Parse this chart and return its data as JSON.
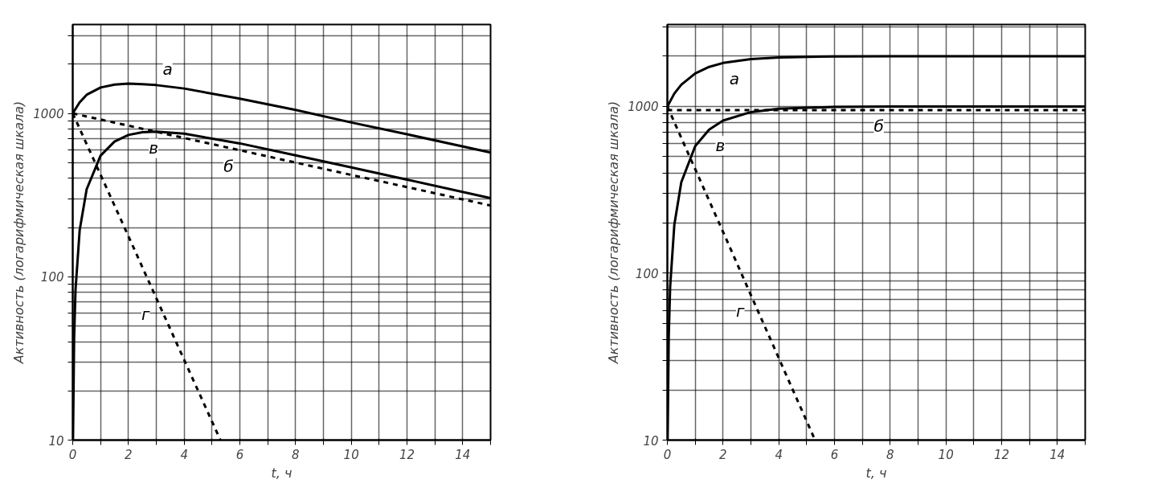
{
  "chart_data": [
    {
      "type": "line",
      "xlabel": "t, ч",
      "ylabel": "Активность (логарифмическая шкала)",
      "log": true,
      "grid": true,
      "xlim": [
        0,
        15
      ],
      "ylim": [
        10,
        3500
      ],
      "xticks": [
        0,
        {
          "value": 1,
          "label": null
        },
        2,
        {
          "value": 3,
          "label": null
        },
        4,
        {
          "value": 5,
          "label": null
        },
        6,
        {
          "value": 7,
          "label": null
        },
        8,
        {
          "value": 9,
          "label": null
        },
        10,
        {
          "value": 11,
          "label": null
        },
        12,
        {
          "value": 13,
          "label": null
        },
        14,
        {
          "value": 15,
          "label": null
        }
      ],
      "yticks": [
        10,
        {
          "value": 20,
          "label": null
        },
        {
          "value": 30,
          "label": null
        },
        {
          "value": 40,
          "label": null
        },
        {
          "value": 50,
          "label": null
        },
        {
          "value": 60,
          "label": null
        },
        {
          "value": 70,
          "label": null
        },
        {
          "value": 80,
          "label": null
        },
        {
          "value": 90,
          "label": null
        },
        100,
        {
          "value": 200,
          "label": null
        },
        {
          "value": 300,
          "label": null
        },
        {
          "value": 400,
          "label": null
        },
        {
          "value": 500,
          "label": null
        },
        {
          "value": 600,
          "label": null
        },
        {
          "value": 700,
          "label": null
        },
        {
          "value": 800,
          "label": null
        },
        {
          "value": 900,
          "label": null
        },
        1000,
        {
          "value": 2000,
          "label": null
        },
        {
          "value": 3000,
          "label": null
        }
      ],
      "series": [
        {
          "name": "а",
          "color": "#000000",
          "line_style": "solid",
          "x": [
            0,
            0.25,
            0.5,
            1,
            1.5,
            2,
            2.5,
            3,
            4,
            6,
            8,
            10,
            12,
            15
          ],
          "values": [
            1000,
            1170,
            1300,
            1440,
            1500,
            1520,
            1510,
            1490,
            1420,
            1230,
            1050,
            880,
            745,
            576
          ]
        },
        {
          "name": "б",
          "color": "#000000",
          "line_style": "dashed",
          "x": [
            0,
            1,
            2,
            3,
            4,
            6,
            8,
            10,
            12,
            15
          ],
          "values": [
            1000,
            917,
            841,
            771,
            707,
            595,
            500,
            420,
            354,
            273
          ]
        },
        {
          "name": "в",
          "color": "#000000",
          "line_style": "solid",
          "x": [
            0.01,
            0.05,
            0.1,
            0.25,
            0.5,
            1,
            1.5,
            2,
            2.5,
            3,
            4,
            6,
            8,
            10,
            12,
            15
          ],
          "values": [
            10,
            42,
            83,
            193,
            343,
            551,
            672,
            738,
            767,
            774,
            751,
            655,
            554,
            467,
            393,
            303
          ]
        },
        {
          "name": "г",
          "color": "#000000",
          "line_style": "dashed",
          "x": [
            0,
            1,
            2,
            3,
            4,
            5,
            5.3
          ],
          "values": [
            1000,
            421,
            177,
            74,
            31,
            13,
            10
          ]
        }
      ]
    },
    {
      "type": "line",
      "xlabel": "t, ч",
      "ylabel": "Активность (логарифмическая шкала)",
      "log": true,
      "grid": true,
      "xlim": [
        0,
        15
      ],
      "ylim": [
        10,
        3100
      ],
      "xticks": [
        0,
        {
          "value": 1,
          "label": null
        },
        2,
        {
          "value": 3,
          "label": null
        },
        4,
        {
          "value": 5,
          "label": null
        },
        6,
        {
          "value": 7,
          "label": null
        },
        8,
        {
          "value": 9,
          "label": null
        },
        10,
        {
          "value": 11,
          "label": null
        },
        12,
        {
          "value": 13,
          "label": null
        },
        14,
        {
          "value": 15,
          "label": null
        }
      ],
      "yticks": [
        10,
        {
          "value": 20,
          "label": null
        },
        {
          "value": 30,
          "label": null
        },
        {
          "value": 40,
          "label": null
        },
        {
          "value": 50,
          "label": null
        },
        {
          "value": 60,
          "label": null
        },
        {
          "value": 70,
          "label": null
        },
        {
          "value": 80,
          "label": null
        },
        {
          "value": 90,
          "label": null
        },
        100,
        {
          "value": 200,
          "label": null
        },
        {
          "value": 300,
          "label": null
        },
        {
          "value": 400,
          "label": null
        },
        {
          "value": 500,
          "label": null
        },
        {
          "value": 600,
          "label": null
        },
        {
          "value": 700,
          "label": null
        },
        {
          "value": 800,
          "label": null
        },
        {
          "value": 900,
          "label": null
        },
        1000,
        {
          "value": 2000,
          "label": null
        },
        {
          "value": 3000,
          "label": null
        }
      ],
      "series": [
        {
          "name": "а",
          "color": "#000000",
          "line_style": "solid",
          "x": [
            0,
            0.25,
            0.5,
            1,
            1.5,
            2,
            3,
            4,
            6,
            8,
            15
          ],
          "values": [
            1000,
            1195,
            1351,
            1579,
            1727,
            1823,
            1926,
            1969,
            1995,
            1999,
            2000
          ]
        },
        {
          "name": "б",
          "color": "#000000",
          "line_style": "dashed",
          "x": [
            0,
            1,
            8,
            15
          ],
          "values": [
            950,
            950,
            950,
            950
          ]
        },
        {
          "name": "в",
          "color": "#000000",
          "line_style": "solid",
          "x": [
            0.01,
            0.05,
            0.1,
            0.25,
            0.5,
            1,
            1.5,
            2,
            3,
            4,
            6,
            8,
            15
          ],
          "values": [
            10,
            42,
            83,
            195,
            351,
            579,
            727,
            823,
            926,
            969,
            995,
            999,
            1000
          ]
        },
        {
          "name": "г",
          "color": "#000000",
          "line_style": "dashed",
          "x": [
            0,
            1,
            2,
            3,
            4,
            5,
            5.3
          ],
          "values": [
            1000,
            421,
            177,
            74,
            31,
            13,
            10
          ]
        }
      ]
    }
  ]
}
